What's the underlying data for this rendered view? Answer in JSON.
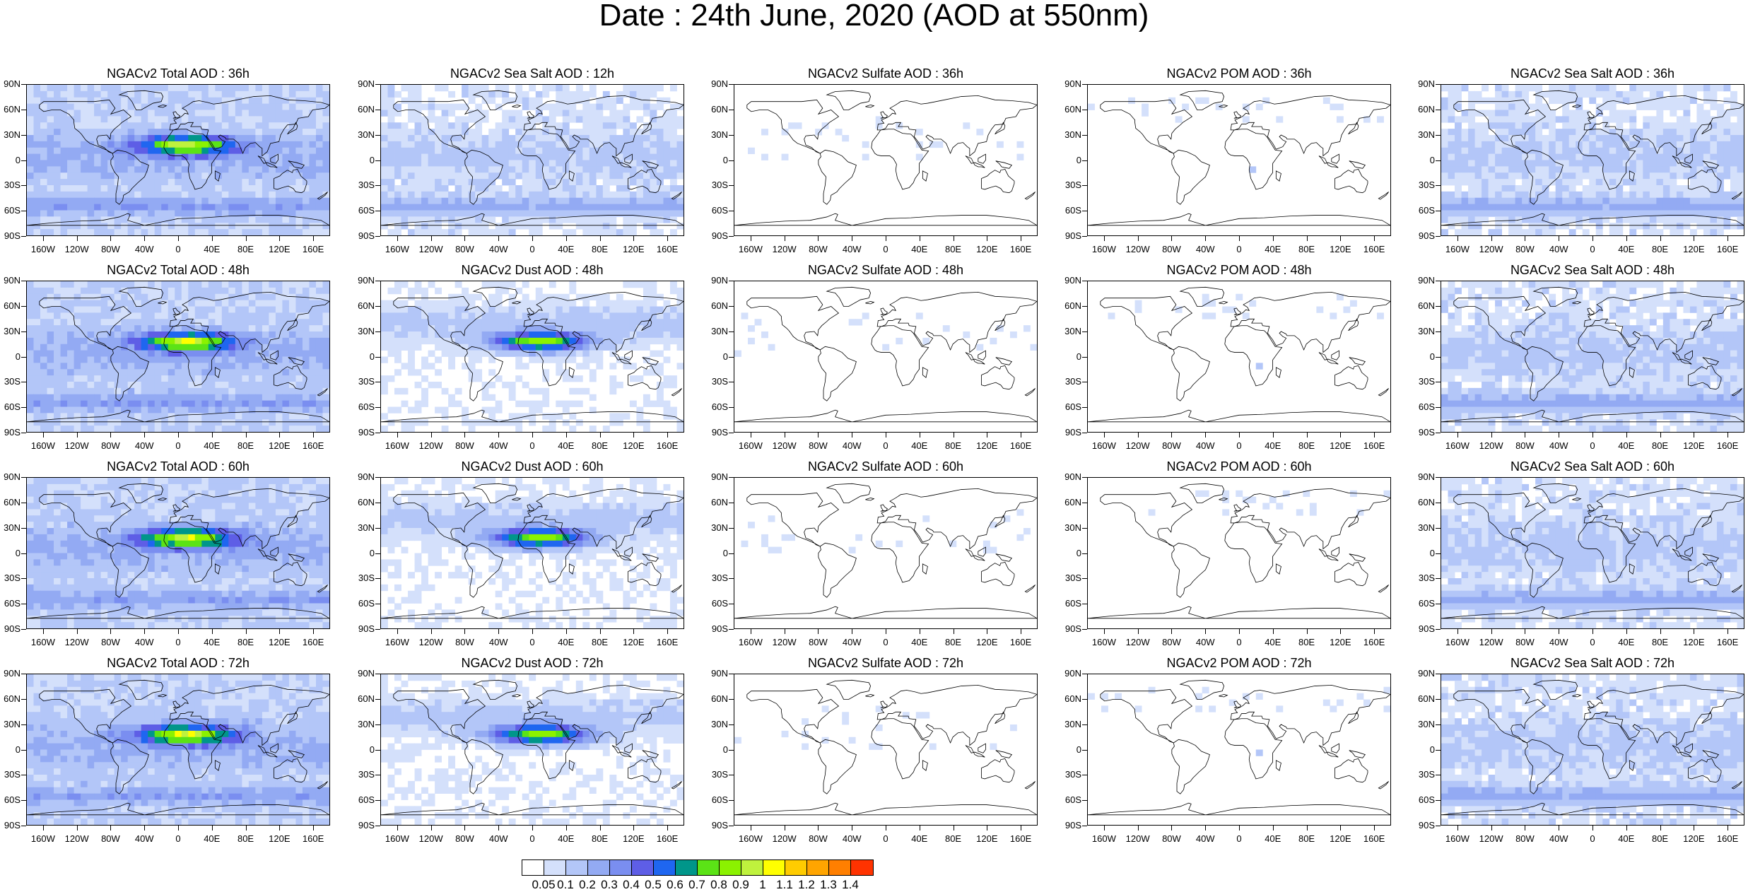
{
  "title": "Date : 24th June, 2020 (AOD at 550nm)",
  "lat_labels": [
    "90N",
    "60N",
    "30N",
    "0",
    "30S",
    "60S",
    "90S"
  ],
  "lon_labels": [
    "160W",
    "120W",
    "80W",
    "40W",
    "0",
    "40E",
    "80E",
    "120E",
    "160E"
  ],
  "panels": [
    [
      "NGACv2 Total AOD : 36h",
      "NGACv2 Sea Salt  AOD : 12h",
      "NGACv2 Sulfate AOD : 36h",
      "NGACv2 POM AOD : 36h",
      "NGACv2 Sea Salt AOD : 36h"
    ],
    [
      "NGACv2 Total AOD : 48h",
      "NGACv2 Dust AOD : 48h",
      "NGACv2 Sulfate AOD : 48h",
      "NGACv2 POM AOD : 48h",
      "NGACv2 Sea Salt AOD : 48h"
    ],
    [
      "NGACv2 Total AOD : 60h",
      "NGACv2 Dust AOD : 60h",
      "NGACv2 Sulfate AOD : 60h",
      "NGACv2 POM AOD : 60h",
      "NGACv2 Sea Salt AOD : 60h"
    ],
    [
      "NGACv2 Total AOD : 72h",
      "NGACv2 Dust AOD : 72h",
      "NGACv2 Sulfate AOD : 72h",
      "NGACv2 POM AOD : 72h",
      "NGACv2 Sea Salt  AOD : 72h"
    ]
  ],
  "colorbar": {
    "colors": [
      "#ffffff",
      "#d4e0fb",
      "#b3c6f8",
      "#93aaf3",
      "#7a8ef0",
      "#5e5ee6",
      "#1f66f0",
      "#00968a",
      "#5be316",
      "#8bf200",
      "#bff23d",
      "#ffff00",
      "#ffcc00",
      "#ffa500",
      "#ff7f00",
      "#ff3300"
    ],
    "labels": [
      "0.05",
      "0.1",
      "0.2",
      "0.3",
      "0.4",
      "0.5",
      "0.6",
      "0.7",
      "0.8",
      "0.9",
      "1",
      "1.1",
      "1.2",
      "1.3",
      "1.4"
    ]
  }
}
